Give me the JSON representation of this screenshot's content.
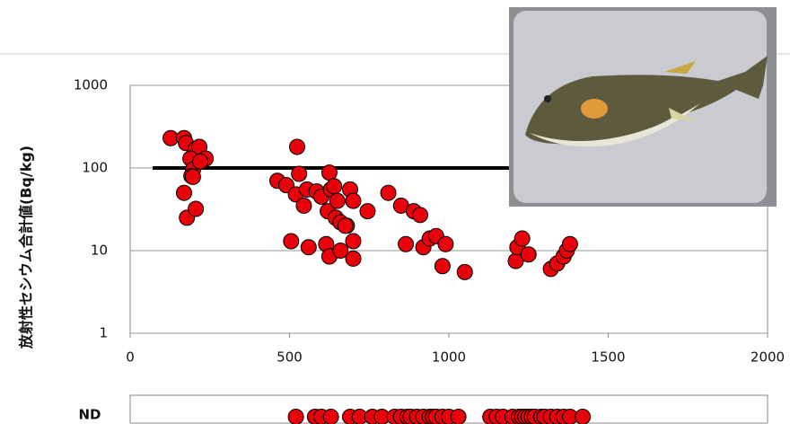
{
  "chart_data": {
    "type": "scatter",
    "y_label": "放射性セシウム合計値(Bq/kg)",
    "xlim": [
      0,
      2000
    ],
    "xticks": [
      0,
      500,
      1000,
      1500,
      2000
    ],
    "ylim": [
      1,
      1000
    ],
    "yticks": [
      1,
      10,
      100,
      1000
    ],
    "log_y": true,
    "grid": true,
    "reference_line": 100,
    "series": [
      {
        "color": "#e8000b",
        "x": [
          127,
          169,
          175,
          206,
          217,
          189,
          237,
          197,
          192,
          169,
          197,
          178,
          206,
          220,
          524,
          462,
          490,
          530,
          520,
          555,
          545,
          585,
          600,
          620,
          630,
          625,
          640,
          650,
          645,
          660,
          690,
          700,
          680,
          745,
          505,
          560,
          615,
          625,
          660,
          700,
          700,
          675,
          810,
          850,
          865,
          890,
          910,
          920,
          940,
          960,
          980,
          990,
          1050,
          1210,
          1215,
          1230,
          1250,
          1320,
          1340,
          1360,
          1370,
          1380
        ],
        "values": [
          230,
          230,
          200,
          170,
          180,
          130,
          130,
          95,
          80,
          50,
          78,
          25,
          32,
          120,
          180,
          70,
          62,
          85,
          48,
          55,
          35,
          52,
          45,
          30,
          55,
          88,
          60,
          40,
          25,
          22,
          55,
          40,
          20,
          30,
          13,
          11,
          12,
          8.5,
          10,
          13,
          8,
          20,
          50,
          35,
          12,
          30,
          27,
          11,
          14,
          15,
          6.5,
          12,
          5.5,
          7.5,
          11,
          14,
          9,
          6,
          7,
          8.5,
          10,
          12
        ]
      }
    ],
    "nd_label": "ND",
    "nd_x": [
      520,
      580,
      600,
      630,
      690,
      720,
      760,
      790,
      830,
      850,
      870,
      880,
      900,
      920,
      940,
      950,
      960,
      980,
      1000,
      1030,
      1130,
      1150,
      1170,
      1200,
      1220,
      1230,
      1240,
      1250,
      1260,
      1270,
      1290,
      1300,
      1320,
      1340,
      1360,
      1380,
      1420
    ]
  }
}
